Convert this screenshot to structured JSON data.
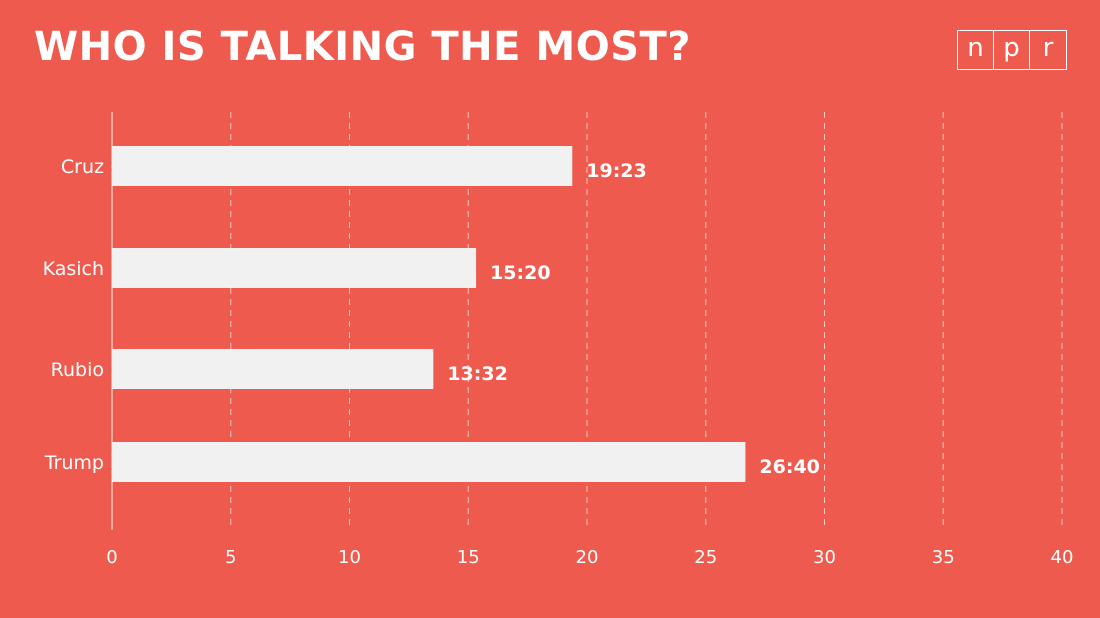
{
  "chart_data": {
    "type": "bar",
    "orientation": "horizontal",
    "title": "WHO IS TALKING THE MOST?",
    "categories": [
      "Cruz",
      "Kasich",
      "Rubio",
      "Trump"
    ],
    "values": [
      19.38,
      15.33,
      13.53,
      26.67
    ],
    "value_labels": [
      "19:23",
      "15:20",
      "13:32",
      "26:40"
    ],
    "xlim": [
      0,
      40
    ],
    "x_ticks": [
      0,
      5,
      10,
      15,
      20,
      25,
      30,
      35,
      40
    ],
    "x_tick_labels": [
      "0",
      "5",
      "10",
      "15",
      "20",
      "25",
      "30",
      "35",
      "40"
    ],
    "xlabel": "",
    "ylabel": "",
    "grid": "vertical dashed",
    "colors": {
      "background": "#ef5a4f",
      "bar": "#f1f1f1",
      "text": "#ffffff",
      "grid": "#f7c7c2",
      "axis": "#f3aaa3"
    }
  },
  "branding": {
    "logo_letters": [
      "n",
      "p",
      "r"
    ]
  }
}
